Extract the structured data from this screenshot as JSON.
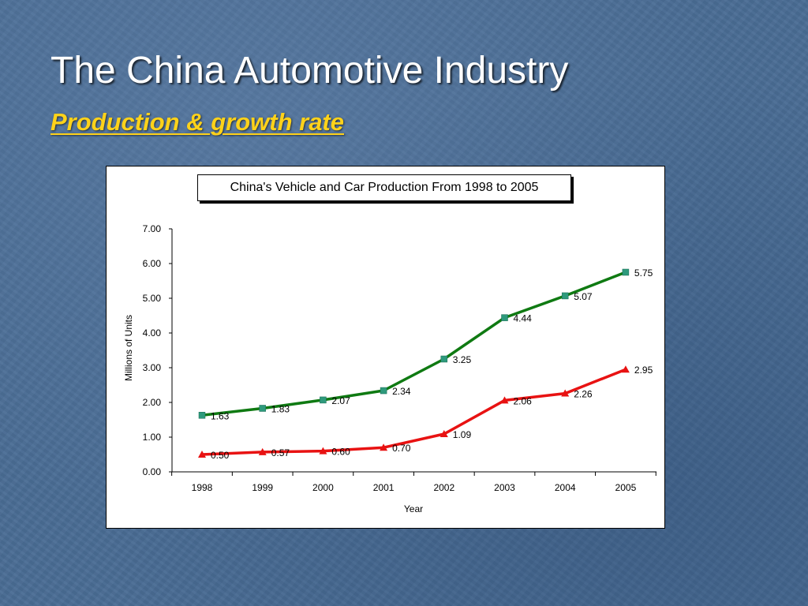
{
  "slide": {
    "title": "The China Automotive Industry",
    "subtitle": "Production & growth rate"
  },
  "colors": {
    "vehicle_series": "#0f7a12",
    "vehicle_marker": "#2e9a7c",
    "car_series": "#e81212",
    "subtitle": "#ffd21a",
    "background": "#4a6d95"
  },
  "chart_data": {
    "type": "line",
    "title": "China's Vehicle and Car Production From 1998 to 2005",
    "xlabel": "Year",
    "ylabel": "Millions of Units",
    "ylim": [
      0,
      7
    ],
    "yticks": [
      "0.00",
      "1.00",
      "2.00",
      "3.00",
      "4.00",
      "5.00",
      "6.00",
      "7.00"
    ],
    "x": [
      "1998",
      "1999",
      "2000",
      "2001",
      "2002",
      "2003",
      "2004",
      "2005"
    ],
    "grid": false,
    "legend": "none",
    "series": [
      {
        "marker": "square",
        "values": [
          1.63,
          1.83,
          2.07,
          2.34,
          3.25,
          4.44,
          5.07,
          5.75
        ],
        "labels": [
          "1.63",
          "1.83",
          "2.07",
          "2.34",
          "3.25",
          "4.44",
          "5.07",
          "5.75"
        ]
      },
      {
        "marker": "triangle",
        "values": [
          0.5,
          0.57,
          0.6,
          0.7,
          1.09,
          2.06,
          2.26,
          2.95
        ],
        "labels": [
          "0.50",
          "0.57",
          "0.60",
          "0.70",
          "1.09",
          "2.06",
          "2.26",
          "2.95"
        ]
      }
    ]
  }
}
